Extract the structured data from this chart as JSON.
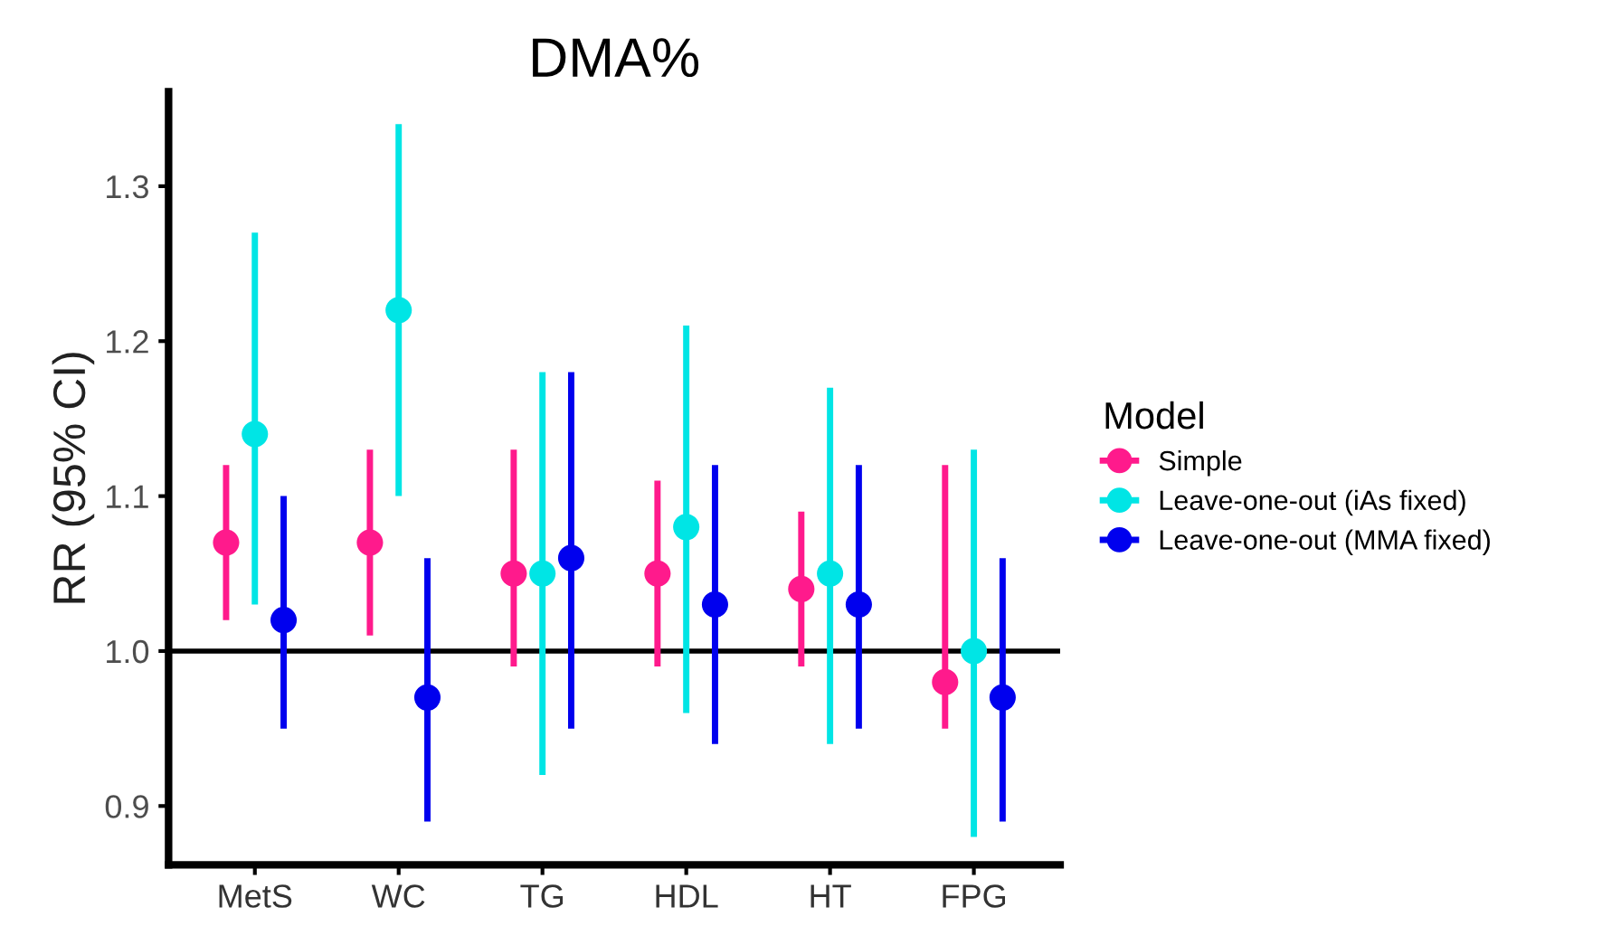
{
  "chart_data": {
    "type": "scatter",
    "title": "DMA%",
    "ylabel": "RR (95% CI)",
    "legend_title": "Model",
    "legend": "right",
    "categories": [
      "MetS",
      "WC",
      "TG",
      "HDL",
      "HT",
      "FPG"
    ],
    "ylim": [
      0.862,
      1.361
    ],
    "yticks": [
      0.9,
      {
        "value": 1,
        "label": "1.0"
      },
      1.1,
      1.2,
      1.3
    ],
    "grid": false,
    "marker": "circle",
    "series": [
      {
        "name": "Simple",
        "color": "#ff1a8c",
        "values": [
          1.07,
          1.07,
          1.05,
          1.05,
          1.04,
          0.98
        ],
        "errors": [
          [
            1.02,
            1.12
          ],
          [
            1.01,
            1.13
          ],
          [
            0.99,
            1.13
          ],
          [
            0.99,
            1.11
          ],
          [
            0.99,
            1.09
          ],
          [
            0.95,
            1.12
          ]
        ]
      },
      {
        "name": "Leave-one-out (iAs fixed)",
        "color": "#00e5e5",
        "values": [
          1.14,
          1.22,
          1.05,
          1.08,
          1.05,
          1.0
        ],
        "errors": [
          [
            1.03,
            1.27
          ],
          [
            1.1,
            1.34
          ],
          [
            0.92,
            1.18
          ],
          [
            0.96,
            1.21
          ],
          [
            0.94,
            1.17
          ],
          [
            0.88,
            1.13
          ]
        ]
      },
      {
        "name": "Leave-one-out (MMA fixed)",
        "color": "#0000ee",
        "values": [
          1.02,
          0.97,
          1.06,
          1.03,
          1.03,
          0.97
        ],
        "errors": [
          [
            0.95,
            1.1
          ],
          [
            0.89,
            1.06
          ],
          [
            0.95,
            1.18
          ],
          [
            0.94,
            1.12
          ],
          [
            0.95,
            1.12
          ],
          [
            0.89,
            1.06
          ]
        ]
      }
    ],
    "ref_lines": [
      {
        "axis": "y",
        "value": 1.0,
        "label": null,
        "color": "#000000"
      }
    ]
  }
}
